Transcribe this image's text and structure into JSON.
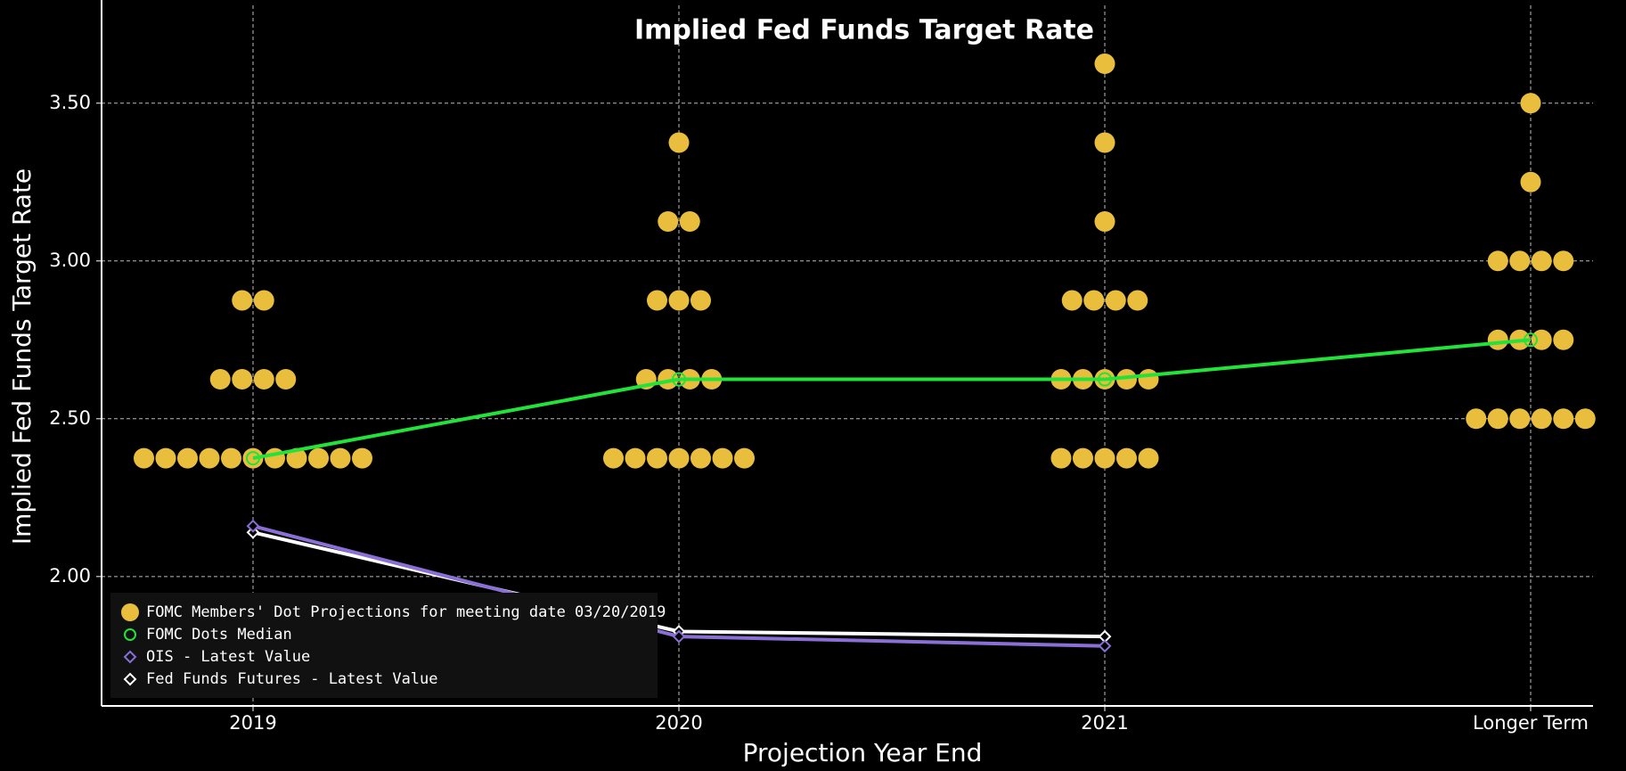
{
  "chart_data": {
    "type": "dot",
    "title": "Implied Fed Funds Target Rate",
    "y_label": "Implied Fed Funds Target Rate",
    "x_label": "Projection Year End",
    "categories": [
      "2019",
      "2020",
      "2021",
      "Longer Term"
    ],
    "ylim": [
      1.59,
      3.81
    ],
    "yticks": [
      {
        "value": 2,
        "label": "2.00"
      },
      {
        "value": 2.5,
        "label": "2.50"
      },
      {
        "value": 3,
        "label": "3.00"
      },
      {
        "value": 3.5,
        "label": "3.50"
      }
    ],
    "grid": true,
    "legend": "lower left",
    "series": [
      {
        "name": "FOMC Members' Dot Projections for meeting date 03/20/2019",
        "type": "dot",
        "color": "#e8be3c",
        "values": [
          [
            2.375,
            2.375,
            2.375,
            2.375,
            2.375,
            2.375,
            2.375,
            2.375,
            2.375,
            2.375,
            2.375,
            2.625,
            2.625,
            2.625,
            2.625,
            2.875,
            2.875
          ],
          [
            2.375,
            2.375,
            2.375,
            2.375,
            2.375,
            2.375,
            2.375,
            2.625,
            2.625,
            2.625,
            2.625,
            2.875,
            2.875,
            2.875,
            3.125,
            3.125,
            3.375
          ],
          [
            2.375,
            2.375,
            2.375,
            2.375,
            2.375,
            2.625,
            2.625,
            2.625,
            2.625,
            2.625,
            2.875,
            2.875,
            2.875,
            2.875,
            3.125,
            3.375,
            3.625
          ],
          [
            2.5,
            2.5,
            2.5,
            2.5,
            2.5,
            2.5,
            2.75,
            2.75,
            2.75,
            2.75,
            3.0,
            3.0,
            3.0,
            3.0,
            3.25,
            3.5
          ]
        ]
      },
      {
        "name": "FOMC Dots Median",
        "type": "line",
        "marker": "circle",
        "color": "#22e33a",
        "values": [
          2.375,
          2.625,
          2.625,
          2.75
        ]
      },
      {
        "name": "OIS - Latest Value",
        "type": "line",
        "marker": "diamond",
        "color": "#8a6fd6",
        "values": [
          2.16,
          1.81,
          1.78,
          null
        ]
      },
      {
        "name": "Fed Funds Futures - Latest Value",
        "type": "line",
        "marker": "diamond",
        "color": "#ffffff",
        "values": [
          2.14,
          1.826,
          1.81,
          null
        ]
      }
    ]
  }
}
